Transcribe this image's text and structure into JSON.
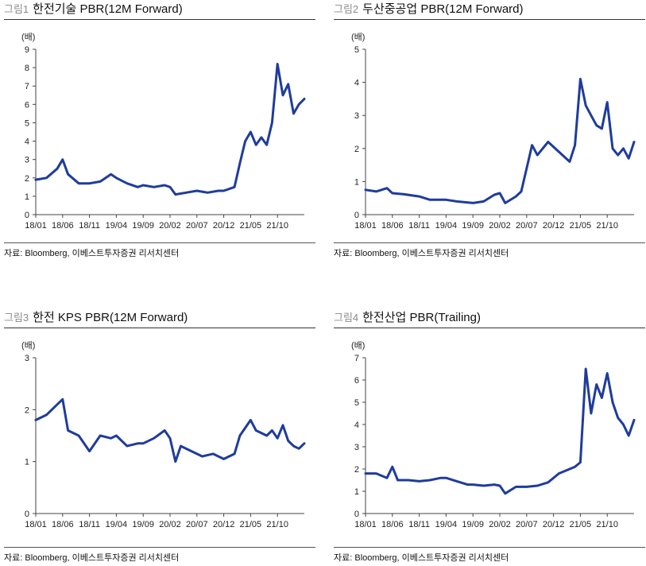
{
  "colors": {
    "line": "#1f3c9c",
    "axis": "#444444"
  },
  "x_categories": [
    "18/01",
    "18/06",
    "18/11",
    "19/04",
    "19/09",
    "20/02",
    "20/07",
    "20/12",
    "21/05",
    "21/10"
  ],
  "charts": [
    {
      "fig_num": "그림1",
      "title": "한전기술  PBR(12M Forward)",
      "unit": "(배)",
      "source": "자료: Bloomberg, 이베스트투자증권 리서치센터",
      "chart_data": {
        "type": "line",
        "title": "한전기술  PBR(12M Forward)",
        "ylabel": "(배)",
        "xlabel": "",
        "ylim": [
          0,
          9
        ],
        "yticks": [
          0,
          1,
          2,
          3,
          4,
          5,
          6,
          7,
          8,
          9
        ],
        "x": [
          "18/01",
          "18/03",
          "18/05",
          "18/06",
          "18/07",
          "18/09",
          "18/11",
          "19/01",
          "19/03",
          "19/04",
          "19/06",
          "19/08",
          "19/09",
          "19/11",
          "20/01",
          "20/02",
          "20/03",
          "20/05",
          "20/07",
          "20/09",
          "20/11",
          "20/12",
          "21/02",
          "21/03",
          "21/04",
          "21/05",
          "21/06",
          "21/07",
          "21/08",
          "21/09",
          "21/10",
          "21/11",
          "21/12",
          "22/01",
          "22/02",
          "22/03"
        ],
        "series": [
          {
            "values": [
              1.9,
              2.0,
              2.5,
              3.0,
              2.2,
              1.7,
              1.7,
              1.8,
              2.2,
              2.0,
              1.7,
              1.5,
              1.6,
              1.5,
              1.6,
              1.5,
              1.1,
              1.2,
              1.3,
              1.2,
              1.3,
              1.3,
              1.5,
              2.8,
              4.0,
              4.5,
              3.8,
              4.2,
              3.8,
              5.0,
              8.2,
              6.5,
              7.1,
              5.5,
              6.0,
              6.3
            ]
          }
        ]
      }
    },
    {
      "fig_num": "그림2",
      "title": "두산중공업  PBR(12M Forward)",
      "unit": "(배)",
      "source": "자료: Bloomberg, 이베스트투자증권 리서치센터",
      "chart_data": {
        "type": "line",
        "title": "두산중공업  PBR(12M Forward)",
        "ylabel": "(배)",
        "xlabel": "",
        "ylim": [
          0,
          5
        ],
        "yticks": [
          0,
          1,
          2,
          3,
          4,
          5
        ],
        "x": [
          "18/01",
          "18/03",
          "18/05",
          "18/06",
          "18/08",
          "18/11",
          "19/01",
          "19/04",
          "19/06",
          "19/09",
          "19/11",
          "20/01",
          "20/02",
          "20/03",
          "20/05",
          "20/06",
          "20/07",
          "20/08",
          "20/09",
          "20/11",
          "21/01",
          "21/03",
          "21/04",
          "21/05",
          "21/06",
          "21/07",
          "21/08",
          "21/09",
          "21/10",
          "21/11",
          "21/12",
          "22/01",
          "22/02",
          "22/03"
        ],
        "series": [
          {
            "values": [
              0.75,
              0.7,
              0.8,
              0.65,
              0.62,
              0.55,
              0.45,
              0.45,
              0.4,
              0.35,
              0.4,
              0.6,
              0.65,
              0.35,
              0.55,
              0.7,
              1.4,
              2.1,
              1.8,
              2.2,
              1.9,
              1.6,
              2.1,
              4.1,
              3.3,
              3.0,
              2.7,
              2.6,
              3.4,
              2.0,
              1.8,
              2.0,
              1.7,
              2.2
            ]
          }
        ]
      }
    },
    {
      "fig_num": "그림3",
      "title": "한전 KPS PBR(12M Forward)",
      "unit": "(배)",
      "source": "자료: Bloomberg, 이베스트투자증권 리서치센터",
      "chart_data": {
        "type": "line",
        "title": "한전 KPS PBR(12M Forward)",
        "ylabel": "(배)",
        "xlabel": "",
        "ylim": [
          0,
          3
        ],
        "yticks": [
          0,
          1,
          2,
          3
        ],
        "x": [
          "18/01",
          "18/03",
          "18/05",
          "18/06",
          "18/07",
          "18/09",
          "18/11",
          "19/01",
          "19/03",
          "19/04",
          "19/06",
          "19/08",
          "19/09",
          "19/11",
          "20/01",
          "20/02",
          "20/03",
          "20/04",
          "20/06",
          "20/08",
          "20/10",
          "20/12",
          "21/02",
          "21/03",
          "21/05",
          "21/06",
          "21/08",
          "21/09",
          "21/10",
          "21/11",
          "21/12",
          "22/01",
          "22/02",
          "22/03"
        ],
        "series": [
          {
            "values": [
              1.8,
              1.9,
              2.1,
              2.2,
              1.6,
              1.5,
              1.2,
              1.5,
              1.45,
              1.5,
              1.3,
              1.35,
              1.35,
              1.45,
              1.6,
              1.45,
              1.0,
              1.3,
              1.2,
              1.1,
              1.15,
              1.05,
              1.15,
              1.5,
              1.8,
              1.6,
              1.5,
              1.6,
              1.45,
              1.7,
              1.4,
              1.3,
              1.25,
              1.35
            ]
          }
        ]
      }
    },
    {
      "fig_num": "그림4",
      "title": "한전산업  PBR(Trailing)",
      "unit": "(배)",
      "source": "자료: Bloomberg, 이베스트투자증권 리서치센터",
      "chart_data": {
        "type": "line",
        "title": "한전산업  PBR(Trailing)",
        "ylabel": "(배)",
        "xlabel": "",
        "ylim": [
          0,
          7
        ],
        "yticks": [
          0,
          1,
          2,
          3,
          4,
          5,
          6,
          7
        ],
        "x": [
          "18/01",
          "18/03",
          "18/05",
          "18/06",
          "18/07",
          "18/09",
          "18/11",
          "19/01",
          "19/03",
          "19/04",
          "19/06",
          "19/08",
          "19/09",
          "19/11",
          "20/01",
          "20/02",
          "20/03",
          "20/05",
          "20/07",
          "20/09",
          "20/11",
          "21/01",
          "21/03",
          "21/04",
          "21/05",
          "21/06",
          "21/07",
          "21/08",
          "21/09",
          "21/10",
          "21/11",
          "21/12",
          "22/01",
          "22/02",
          "22/03"
        ],
        "series": [
          {
            "values": [
              1.8,
              1.8,
              1.6,
              2.1,
              1.5,
              1.5,
              1.45,
              1.5,
              1.6,
              1.6,
              1.45,
              1.3,
              1.3,
              1.25,
              1.3,
              1.25,
              0.9,
              1.2,
              1.2,
              1.25,
              1.4,
              1.8,
              2.0,
              2.1,
              2.3,
              6.5,
              4.5,
              5.8,
              5.2,
              6.3,
              5.0,
              4.3,
              4.0,
              3.5,
              4.2
            ]
          }
        ]
      }
    }
  ]
}
